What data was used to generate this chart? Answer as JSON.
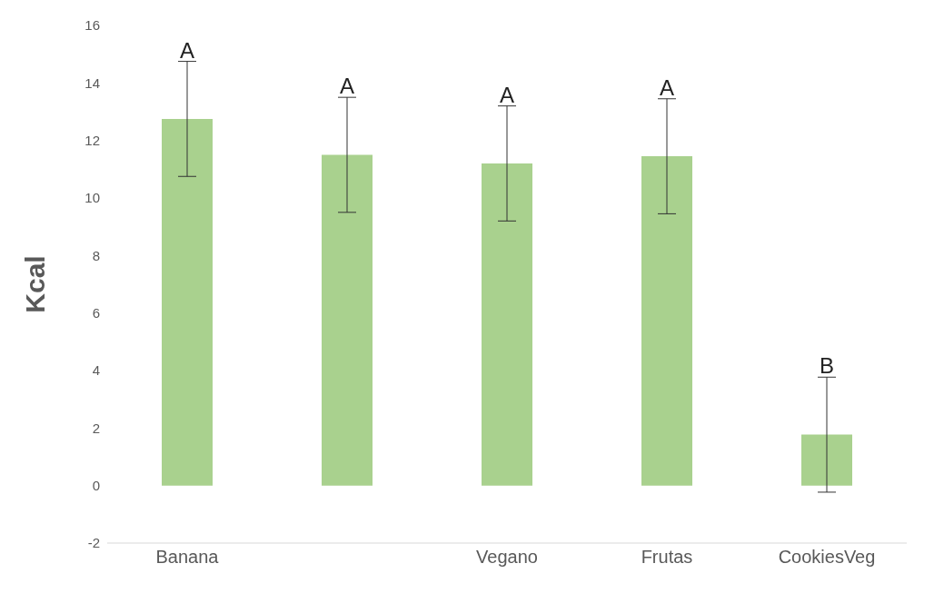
{
  "chart_data": {
    "type": "bar",
    "ylabel": "Kcal",
    "categories": [
      "Banana",
      null,
      "Vegano",
      "Frutas",
      "CookiesVeg"
    ],
    "values": [
      12.75,
      11.5,
      11.2,
      11.45,
      1.77
    ],
    "errors": [
      2,
      2,
      2,
      2,
      2
    ],
    "color": "#a9d18e",
    "ylim": [
      -2,
      16
    ],
    "yticks": [
      -2,
      0,
      2,
      4,
      6,
      8,
      10,
      12,
      14,
      16
    ],
    "grid": false,
    "legend": false,
    "annotations": [
      {
        "text": "A",
        "x": "Banana",
        "y": 14.75
      },
      {
        "text": "A",
        "y": 13.5
      },
      {
        "text": "A",
        "x": "Vegano",
        "y": 13.2
      },
      {
        "text": "A",
        "x": "Frutas",
        "y": 13.45
      },
      {
        "text": "B",
        "x": "CookiesVeg",
        "y": 3.77
      }
    ]
  }
}
